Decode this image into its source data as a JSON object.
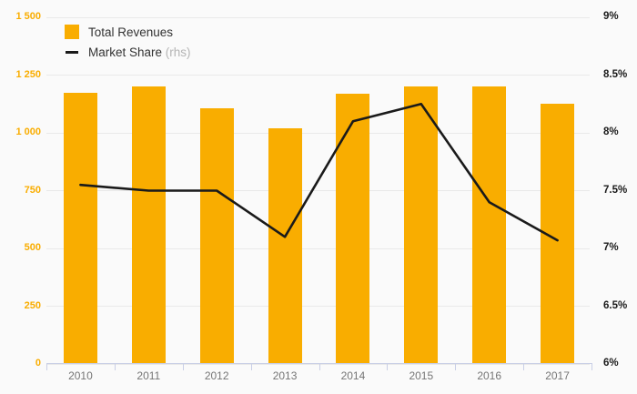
{
  "legend": {
    "bar_label": "Total Revenues",
    "line_label": "Market Share",
    "line_suffix": " (rhs)"
  },
  "chart_data": {
    "type": "combo",
    "categories": [
      "2010",
      "2011",
      "2012",
      "2013",
      "2014",
      "2015",
      "2016",
      "2017"
    ],
    "series": [
      {
        "name": "Total Revenues",
        "type": "bar",
        "axis": "left",
        "values": [
          1175,
          1200,
          1105,
          1020,
          1170,
          1200,
          1200,
          1125
        ]
      },
      {
        "name": "Market Share (rhs)",
        "type": "line",
        "axis": "right",
        "values": [
          7.55,
          7.5,
          7.5,
          7.1,
          8.1,
          8.25,
          7.4,
          7.07
        ]
      }
    ],
    "left_axis": {
      "min": 0,
      "max": 1500,
      "tick_step": 250,
      "tick_labels": [
        "0",
        "250",
        "500",
        "750",
        "1 000",
        "1 250",
        "1 500"
      ]
    },
    "right_axis": {
      "min": 6,
      "max": 9,
      "tick_step": 0.5,
      "tick_labels": [
        "6%",
        "6.5%",
        "7%",
        "7.5%",
        "8%",
        "8.5%",
        "9%"
      ]
    },
    "grid": true,
    "legend_position": "top-left",
    "title": "",
    "xlabel": "",
    "ylabel": ""
  },
  "colors": {
    "background": "#fafafa",
    "gridline": "#e9e9e9",
    "axis": "#c9cfe6",
    "bar": "#f9ad00",
    "line": "#1a1a1a",
    "left_tick_text": "#f9ad00",
    "right_tick_text": "#1a1a1a",
    "year_text": "#757575",
    "legend_text": "#333333",
    "rhs_text": "#b5b5b5"
  }
}
